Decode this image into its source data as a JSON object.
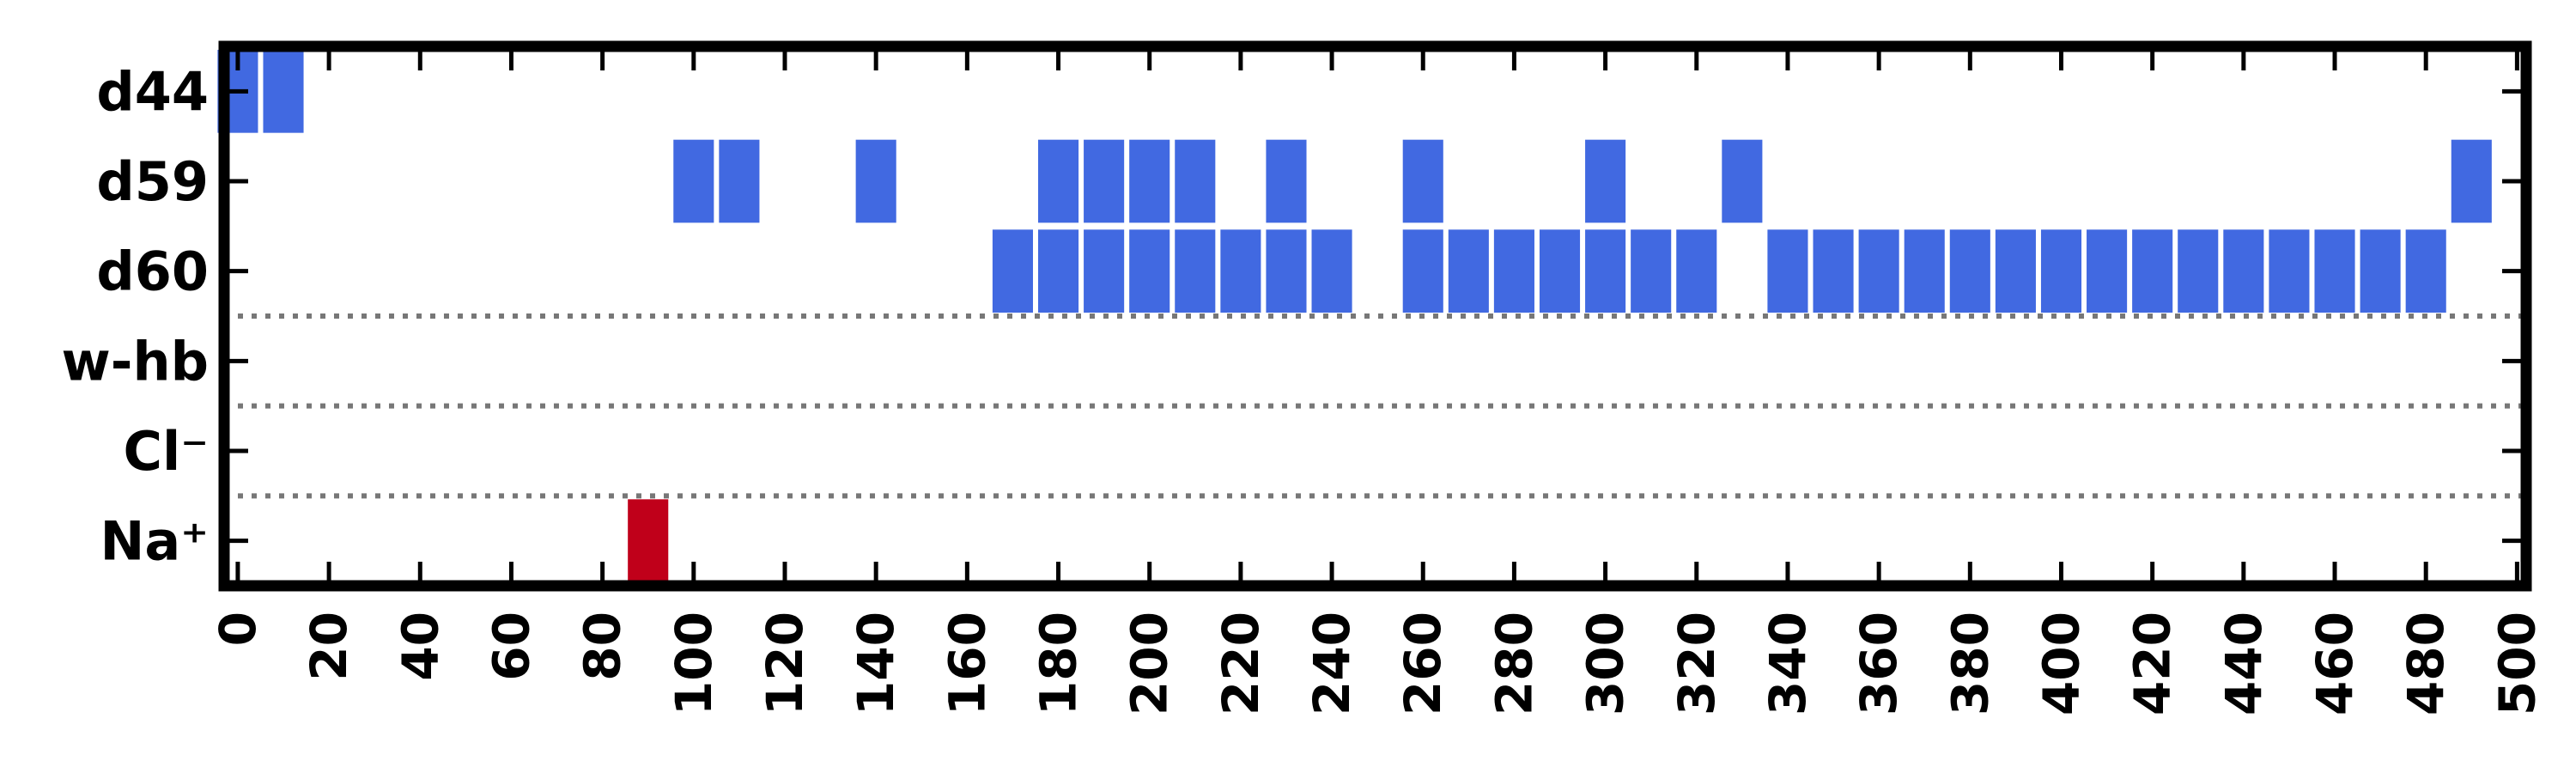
{
  "chart_data": {
    "type": "heatmap",
    "title": "",
    "xlabel": "",
    "ylabel": "",
    "xlim": [
      -3,
      502
    ],
    "x_ticks": [
      0,
      20,
      40,
      60,
      80,
      100,
      120,
      140,
      160,
      180,
      200,
      220,
      240,
      260,
      280,
      300,
      320,
      340,
      360,
      380,
      400,
      420,
      440,
      460,
      480,
      500
    ],
    "rows": [
      {
        "label": "d44",
        "color": "#4169e1",
        "x": [
          0,
          10
        ]
      },
      {
        "label": "d59",
        "color": "#4169e1",
        "x": [
          100,
          110,
          140,
          180,
          190,
          200,
          210,
          230,
          260,
          300,
          330,
          490
        ]
      },
      {
        "label": "d60",
        "color": "#4169e1",
        "x": [
          170,
          180,
          190,
          200,
          210,
          220,
          230,
          240,
          260,
          270,
          280,
          290,
          300,
          310,
          320,
          340,
          350,
          360,
          370,
          380,
          390,
          400,
          410,
          420,
          430,
          440,
          450,
          460,
          470,
          480
        ]
      },
      {
        "label": "w-hb",
        "color": "#4169e1",
        "x": []
      },
      {
        "label": "Cl⁻",
        "color": "#4169e1",
        "x": []
      },
      {
        "label": "Na⁺",
        "color": "#c0001a",
        "x": [
          90
        ]
      }
    ],
    "bin_width": 10,
    "separator_lines_below": [
      "d60",
      "w-hb",
      "Cl⁻"
    ],
    "separator_style": "dotted gray",
    "grid": false,
    "legend": "none"
  }
}
